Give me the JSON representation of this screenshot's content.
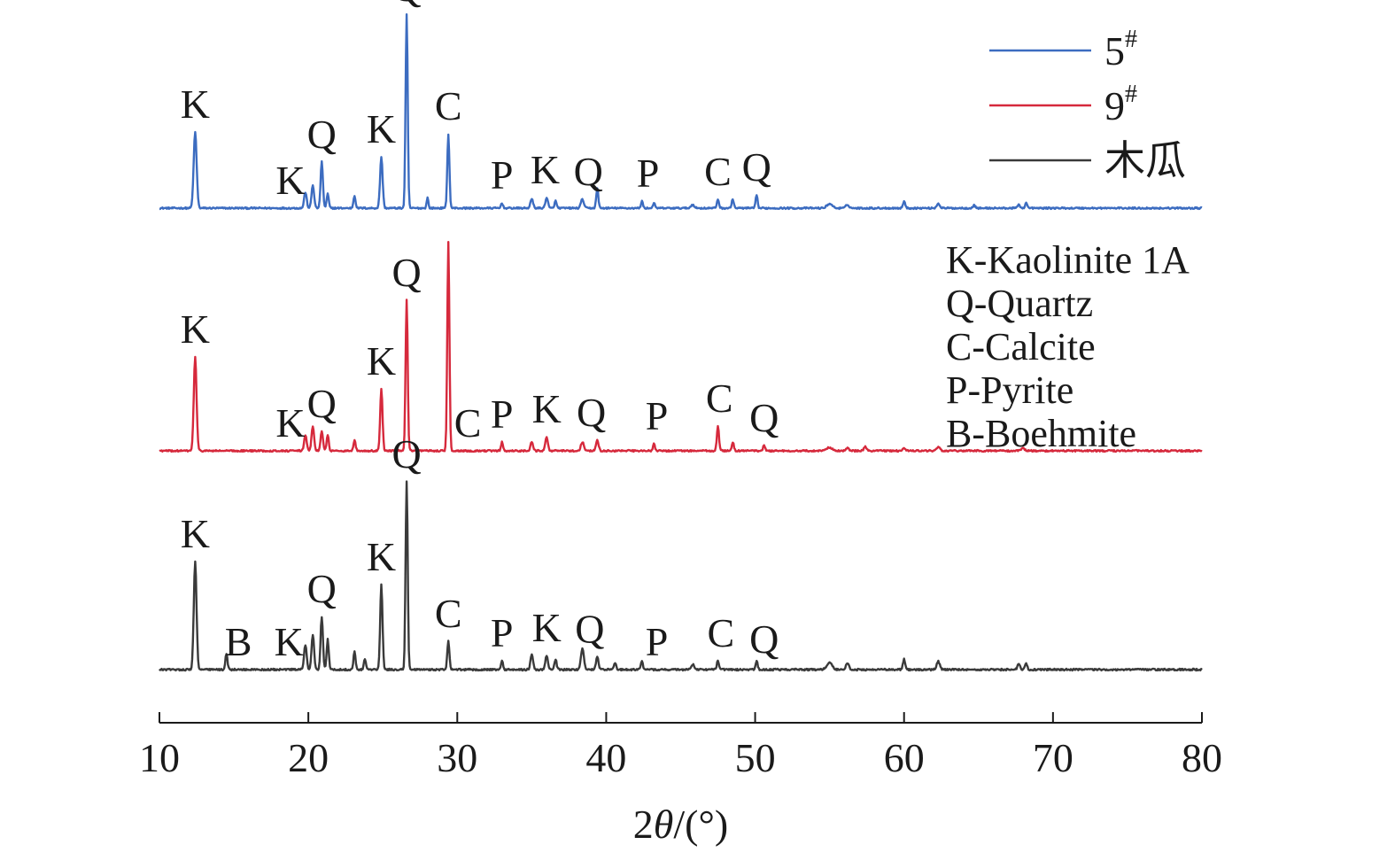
{
  "chart_data": {
    "type": "line",
    "xlabel_parts": [
      "2",
      "θ",
      "/(°)"
    ],
    "xlim": [
      10,
      80
    ],
    "x_ticks": [
      "10",
      "20",
      "30",
      "40",
      "50",
      "60",
      "70",
      "80"
    ],
    "grid": false,
    "y_axis": "hidden",
    "legend_placement": "top-right",
    "series": [
      {
        "name": "5#",
        "legend_base": "5",
        "legend_sup": "#",
        "color": "#3c6cc0",
        "baseline": 0.06,
        "noise": 0.018,
        "peaks": [
          [
            12.4,
            0.86,
            0.14
          ],
          [
            19.8,
            0.18,
            0.12
          ],
          [
            20.3,
            0.26,
            0.12
          ],
          [
            20.9,
            0.52,
            0.11
          ],
          [
            21.3,
            0.16,
            0.1
          ],
          [
            23.1,
            0.14,
            0.1
          ],
          [
            24.9,
            0.58,
            0.12
          ],
          [
            26.6,
            2.18,
            0.1
          ],
          [
            28.0,
            0.12,
            0.08
          ],
          [
            29.4,
            0.84,
            0.1
          ],
          [
            33.0,
            0.06,
            0.09
          ],
          [
            35.0,
            0.1,
            0.13
          ],
          [
            36.0,
            0.12,
            0.12
          ],
          [
            36.6,
            0.08,
            0.1
          ],
          [
            38.4,
            0.1,
            0.14
          ],
          [
            39.4,
            0.22,
            0.1
          ],
          [
            42.4,
            0.08,
            0.09
          ],
          [
            43.2,
            0.06,
            0.09
          ],
          [
            45.8,
            0.04,
            0.15
          ],
          [
            47.5,
            0.1,
            0.1
          ],
          [
            48.5,
            0.1,
            0.1
          ],
          [
            50.1,
            0.15,
            0.09
          ],
          [
            55.0,
            0.05,
            0.25
          ],
          [
            56.2,
            0.04,
            0.15
          ],
          [
            60.0,
            0.08,
            0.1
          ],
          [
            62.3,
            0.05,
            0.15
          ],
          [
            64.7,
            0.03,
            0.12
          ],
          [
            67.7,
            0.04,
            0.12
          ],
          [
            68.2,
            0.06,
            0.1
          ]
        ]
      },
      {
        "name": "9#",
        "legend_base": "9",
        "legend_sup": "#",
        "color": "#d6293c",
        "baseline": 0.06,
        "noise": 0.018,
        "peaks": [
          [
            12.4,
            1.06,
            0.13
          ],
          [
            19.8,
            0.18,
            0.12
          ],
          [
            20.3,
            0.28,
            0.12
          ],
          [
            20.9,
            0.22,
            0.11
          ],
          [
            21.3,
            0.18,
            0.1
          ],
          [
            23.1,
            0.12,
            0.1
          ],
          [
            24.9,
            0.7,
            0.11
          ],
          [
            26.6,
            1.7,
            0.1
          ],
          [
            29.4,
            2.36,
            0.1
          ],
          [
            33.0,
            0.1,
            0.09
          ],
          [
            35.0,
            0.1,
            0.12
          ],
          [
            36.0,
            0.16,
            0.12
          ],
          [
            38.4,
            0.1,
            0.14
          ],
          [
            39.4,
            0.12,
            0.12
          ],
          [
            43.2,
            0.08,
            0.09
          ],
          [
            47.5,
            0.28,
            0.1
          ],
          [
            48.5,
            0.1,
            0.1
          ],
          [
            50.6,
            0.06,
            0.1
          ],
          [
            55.0,
            0.04,
            0.25
          ],
          [
            56.2,
            0.03,
            0.12
          ],
          [
            57.4,
            0.05,
            0.12
          ],
          [
            60.0,
            0.03,
            0.12
          ],
          [
            62.3,
            0.04,
            0.15
          ],
          [
            68.0,
            0.03,
            0.15
          ]
        ]
      },
      {
        "name": "木瓜",
        "legend_base": "木瓜",
        "legend_sup": "",
        "color": "#3a3a3a",
        "baseline": 0.06,
        "noise": 0.02,
        "peaks": [
          [
            12.4,
            1.22,
            0.13
          ],
          [
            14.5,
            0.18,
            0.1
          ],
          [
            19.8,
            0.28,
            0.12
          ],
          [
            20.3,
            0.4,
            0.12
          ],
          [
            20.9,
            0.6,
            0.11
          ],
          [
            21.3,
            0.34,
            0.1
          ],
          [
            23.1,
            0.2,
            0.1
          ],
          [
            23.8,
            0.12,
            0.1
          ],
          [
            24.9,
            0.96,
            0.11
          ],
          [
            26.6,
            2.12,
            0.1
          ],
          [
            29.4,
            0.32,
            0.1
          ],
          [
            33.0,
            0.1,
            0.09
          ],
          [
            35.0,
            0.18,
            0.12
          ],
          [
            36.0,
            0.16,
            0.12
          ],
          [
            36.6,
            0.12,
            0.1
          ],
          [
            38.4,
            0.24,
            0.14
          ],
          [
            39.4,
            0.14,
            0.12
          ],
          [
            40.6,
            0.08,
            0.1
          ],
          [
            42.4,
            0.1,
            0.09
          ],
          [
            45.8,
            0.06,
            0.15
          ],
          [
            47.5,
            0.1,
            0.1
          ],
          [
            50.1,
            0.1,
            0.09
          ],
          [
            55.0,
            0.08,
            0.25
          ],
          [
            56.2,
            0.07,
            0.15
          ],
          [
            60.0,
            0.12,
            0.1
          ],
          [
            62.3,
            0.09,
            0.15
          ],
          [
            67.7,
            0.07,
            0.12
          ],
          [
            68.2,
            0.07,
            0.1
          ]
        ]
      }
    ],
    "peak_labels": [
      {
        "series": 0,
        "text": "K",
        "x": 12.4
      },
      {
        "series": 0,
        "text": "K",
        "x": 18.8
      },
      {
        "series": 0,
        "text": "Q",
        "x": 20.9
      },
      {
        "series": 0,
        "text": "K",
        "x": 24.9
      },
      {
        "series": 0,
        "text": "Q",
        "x": 26.6
      },
      {
        "series": 0,
        "text": "C",
        "x": 29.4
      },
      {
        "series": 0,
        "text": "P",
        "x": 33.0
      },
      {
        "series": 0,
        "text": "K",
        "x": 35.9
      },
      {
        "series": 0,
        "text": "Q",
        "x": 38.8
      },
      {
        "series": 0,
        "text": "P",
        "x": 42.8
      },
      {
        "series": 0,
        "text": "C",
        "x": 47.5
      },
      {
        "series": 0,
        "text": "Q",
        "x": 50.1
      },
      {
        "series": 1,
        "text": "K",
        "x": 12.4
      },
      {
        "series": 1,
        "text": "K",
        "x": 18.8
      },
      {
        "series": 1,
        "text": "Q",
        "x": 20.9
      },
      {
        "series": 1,
        "text": "K",
        "x": 24.9
      },
      {
        "series": 1,
        "text": "Q",
        "x": 26.6
      },
      {
        "series": 1,
        "text": "C",
        "x": 30.7
      },
      {
        "series": 1,
        "text": "P",
        "x": 33.0
      },
      {
        "series": 1,
        "text": "K",
        "x": 36.0
      },
      {
        "series": 1,
        "text": "Q",
        "x": 39.0
      },
      {
        "series": 1,
        "text": "P",
        "x": 43.4
      },
      {
        "series": 1,
        "text": "C",
        "x": 47.6
      },
      {
        "series": 1,
        "text": "Q",
        "x": 50.6
      },
      {
        "series": 2,
        "text": "K",
        "x": 12.4
      },
      {
        "series": 2,
        "text": "B",
        "x": 15.3
      },
      {
        "series": 2,
        "text": "K",
        "x": 18.7
      },
      {
        "series": 2,
        "text": "Q",
        "x": 20.9
      },
      {
        "series": 2,
        "text": "K",
        "x": 24.9
      },
      {
        "series": 2,
        "text": "Q",
        "x": 26.6
      },
      {
        "series": 2,
        "text": "C",
        "x": 29.4
      },
      {
        "series": 2,
        "text": "P",
        "x": 33.0
      },
      {
        "series": 2,
        "text": "K",
        "x": 36.0
      },
      {
        "series": 2,
        "text": "Q",
        "x": 38.9
      },
      {
        "series": 2,
        "text": "P",
        "x": 43.4
      },
      {
        "series": 2,
        "text": "C",
        "x": 47.7
      },
      {
        "series": 2,
        "text": "Q",
        "x": 50.6
      }
    ],
    "mineral_key": [
      "K-Kaolinite 1A",
      "Q-Quartz",
      "C-Calcite",
      "P-Pyrite",
      "B-Boehmite"
    ]
  }
}
